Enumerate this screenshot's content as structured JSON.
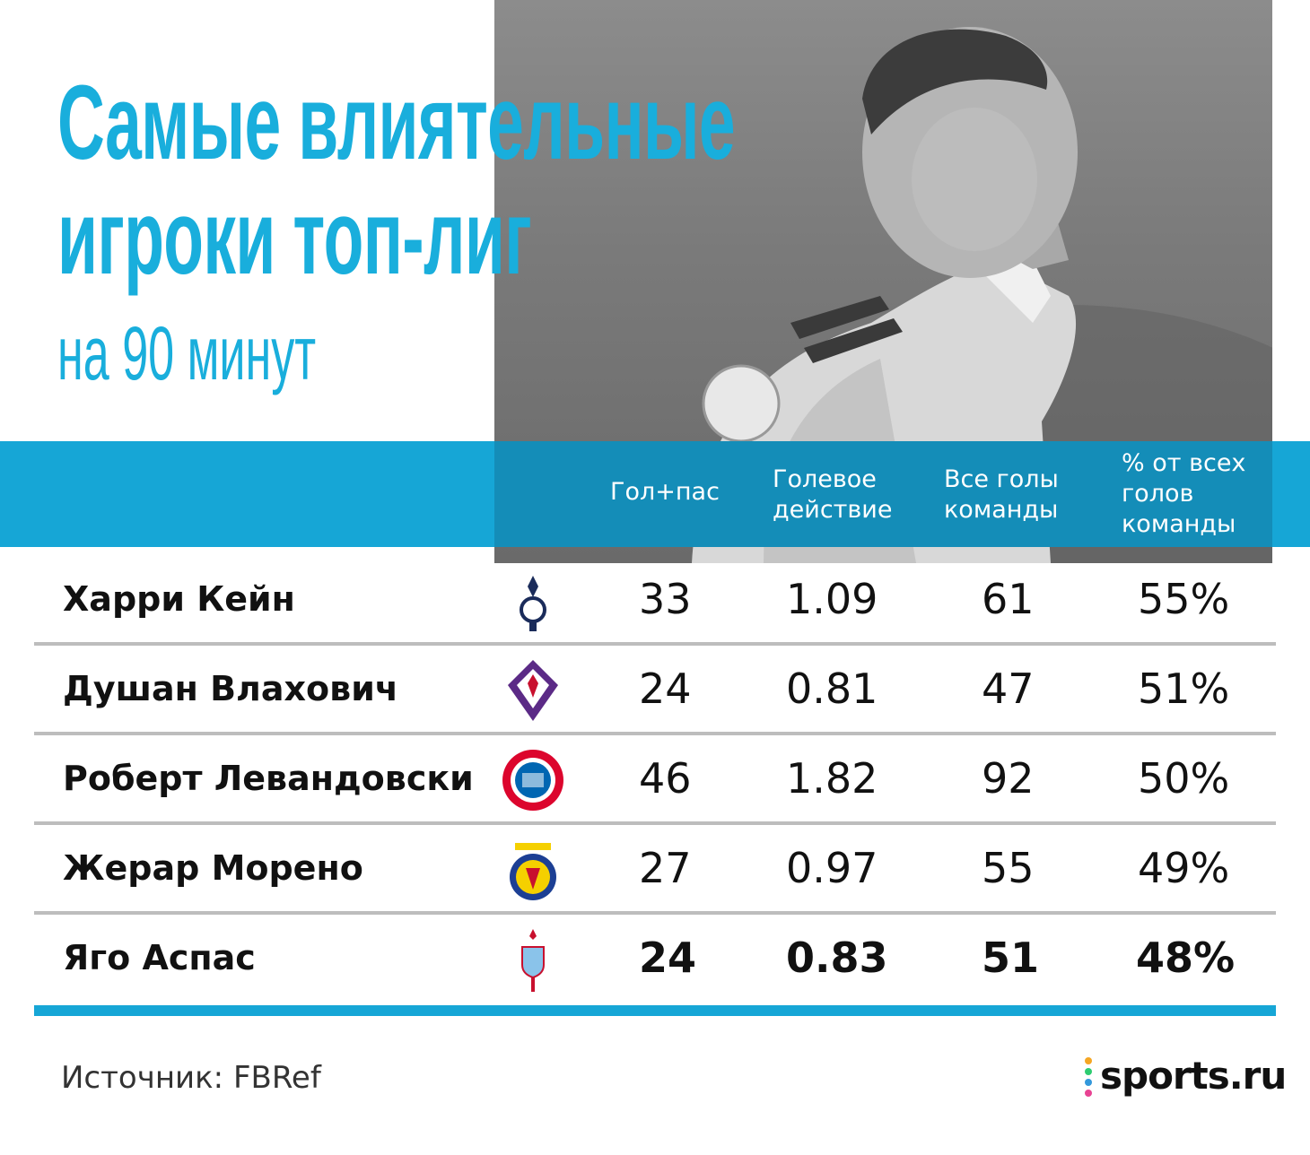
{
  "title": {
    "line1": "Самые влиятельные",
    "line2": "игроки топ-лиг",
    "subtitle": "на 90 минут"
  },
  "columns": {
    "goals_assists": "Гол+пас",
    "goal_action": "Голевое\nдействие",
    "team_goals": "Все голы\nкоманды",
    "share": "% от всех\nголов\nкоманды"
  },
  "chart_data": {
    "type": "table",
    "columns": [
      "",
      "Гол+пас",
      "Голевое действие",
      "Все голы команды",
      "% от всех голов команды"
    ],
    "rows": [
      {
        "player": "Харри Кейн",
        "club_icon": "tottenham-crest-icon",
        "goals_assists": "33",
        "goal_action": "1.09",
        "team_goals": "61",
        "share": "55%"
      },
      {
        "player": "Душан Влахович",
        "club_icon": "fiorentina-crest-icon",
        "goals_assists": "24",
        "goal_action": "0.81",
        "team_goals": "47",
        "share": "51%"
      },
      {
        "player": "Роберт Левандовски",
        "club_icon": "bayern-crest-icon",
        "goals_assists": "46",
        "goal_action": "1.82",
        "team_goals": "92",
        "share": "50%"
      },
      {
        "player": "Жерар Морено",
        "club_icon": "villarreal-crest-icon",
        "goals_assists": "27",
        "goal_action": "0.97",
        "team_goals": "55",
        "share": "49%"
      },
      {
        "player": "Яго Аспас",
        "club_icon": "celta-crest-icon",
        "goals_assists": "24",
        "goal_action": "0.83",
        "team_goals": "51",
        "share": "48%",
        "highlight": true
      }
    ]
  },
  "footer": {
    "source": "Источник: FBRef",
    "brand": "sports.ru"
  },
  "colors": {
    "accent": "#16a6d6",
    "title": "#19aedc",
    "divider": "#bdbdbd",
    "text": "#111111"
  }
}
